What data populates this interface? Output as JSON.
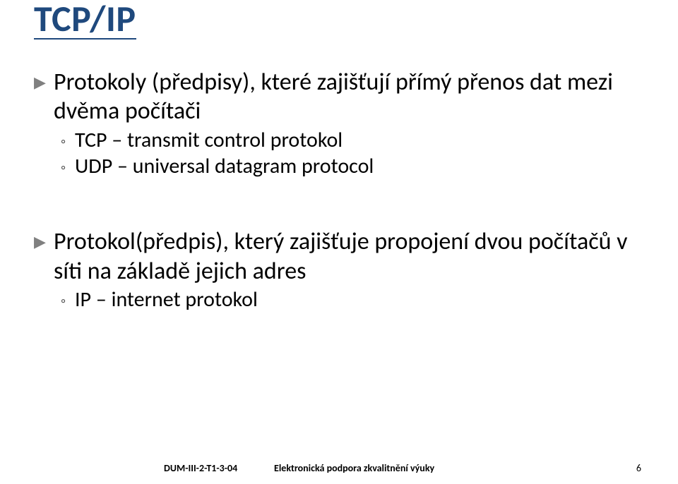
{
  "colors": {
    "title": "#1f497d",
    "l1_bullet": "#808080",
    "accent_underline": "#1f497d"
  },
  "title": "TCP/IP",
  "content": {
    "sections": [
      {
        "text": "Protokoly (předpisy), které zajišťují přímý přenos dat mezi dvěma počítači",
        "children": [
          {
            "text": "TCP – transmit control protokol"
          },
          {
            "text": "UDP – universal datagram protocol"
          }
        ]
      },
      {
        "text": "Protokol(předpis), který zajišťuje propojení dvou počítačů v síti na základě jejich adres",
        "children": [
          {
            "text": "IP – internet protokol"
          }
        ]
      }
    ]
  },
  "footer": {
    "left": "DUM-III-2-T1-3-04",
    "center": "Elektronická podpora zkvalitnění výuky",
    "page": "6"
  },
  "typography": {
    "title_fontsize": 52,
    "body_fontsize": 34,
    "sub_fontsize": 30,
    "footer_fontsize": 14
  }
}
